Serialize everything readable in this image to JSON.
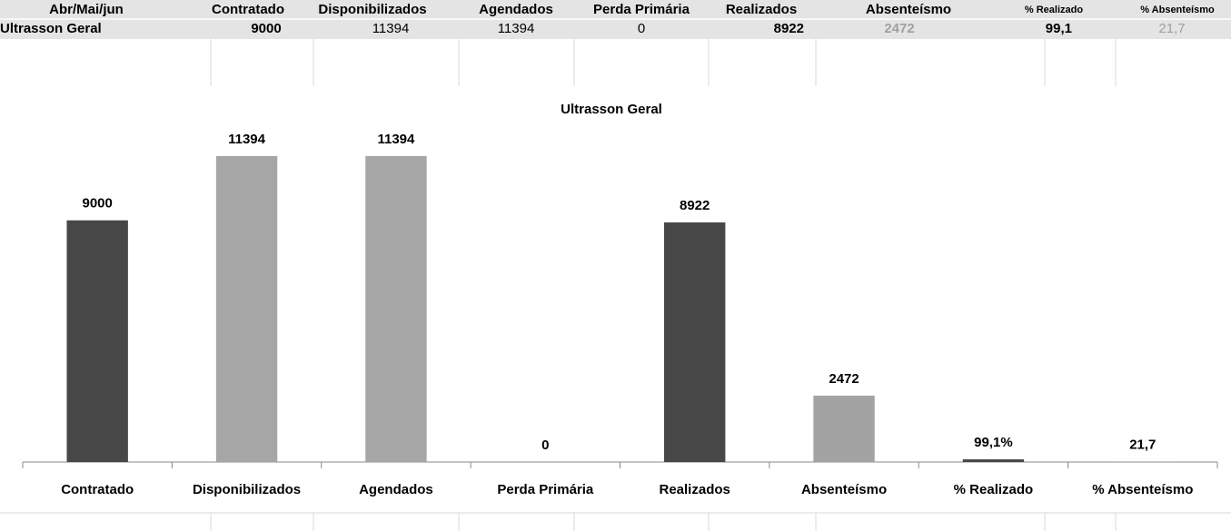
{
  "table": {
    "header": [
      "Abr/Mai/jun",
      "Contratado",
      "Disponibilizados",
      "Agendados",
      "Perda Primária",
      "Realizados",
      "Absenteísmo",
      "% Realizado",
      "% Absenteísmo"
    ],
    "rows": [
      [
        "Ultrasson Geral",
        9000,
        11394,
        11394,
        0,
        8922,
        2472,
        "99,1",
        "21,7"
      ]
    ]
  },
  "chart_data": {
    "type": "bar",
    "title": "Ultrasson Geral",
    "categories": [
      "Contratado",
      "Disponibilizados",
      "Agendados",
      "Perda Primária",
      "Realizados",
      "Absenteísmo",
      "% Realizado",
      "% Absenteísmo"
    ],
    "values": [
      9000,
      11394,
      11394,
      0,
      8922,
      2472,
      99.1,
      21.7
    ],
    "value_labels": [
      "9000",
      "11394",
      "11394",
      "0",
      "8922",
      "2472",
      "99,1%",
      "21,7"
    ],
    "colors": [
      "#474747",
      "#a6a6a6",
      "#a6a6a6",
      "#a6a6a6",
      "#474747",
      "#a3a3a3",
      "#474747",
      "#a6a6a6"
    ],
    "ylim": [
      0,
      12000
    ]
  }
}
